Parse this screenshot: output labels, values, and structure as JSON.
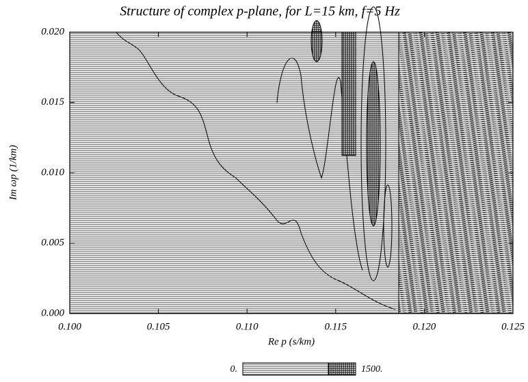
{
  "chart_data": {
    "type": "contour",
    "title": "Structure of complex p-plane, for L=15 km, f=5 Hz",
    "xlabel": "Re p (s/km)",
    "ylabel": "Im ωp (1/km)",
    "xlim": [
      0.1,
      0.125
    ],
    "ylim": [
      0,
      0.02
    ],
    "xticks": [
      {
        "value": 0.1,
        "label": "0.100"
      },
      {
        "value": 0.105,
        "label": "0.105"
      },
      {
        "value": 0.11,
        "label": "0.110"
      },
      {
        "value": 0.115,
        "label": "0.115"
      },
      {
        "value": 0.12,
        "label": "0.120"
      },
      {
        "value": 0.125,
        "label": "0.125"
      }
    ],
    "yticks": [
      {
        "value": 0,
        "label": "0.000"
      },
      {
        "value": 0.005,
        "label": "0.005"
      },
      {
        "value": 0.01,
        "label": "0.010"
      },
      {
        "value": 0.015,
        "label": "0.015"
      },
      {
        "value": 0.02,
        "label": "0.020"
      }
    ],
    "colorbar_ticks": [
      {
        "value": 0,
        "label": "0."
      },
      {
        "value": 1500,
        "label": "1500."
      }
    ]
  }
}
